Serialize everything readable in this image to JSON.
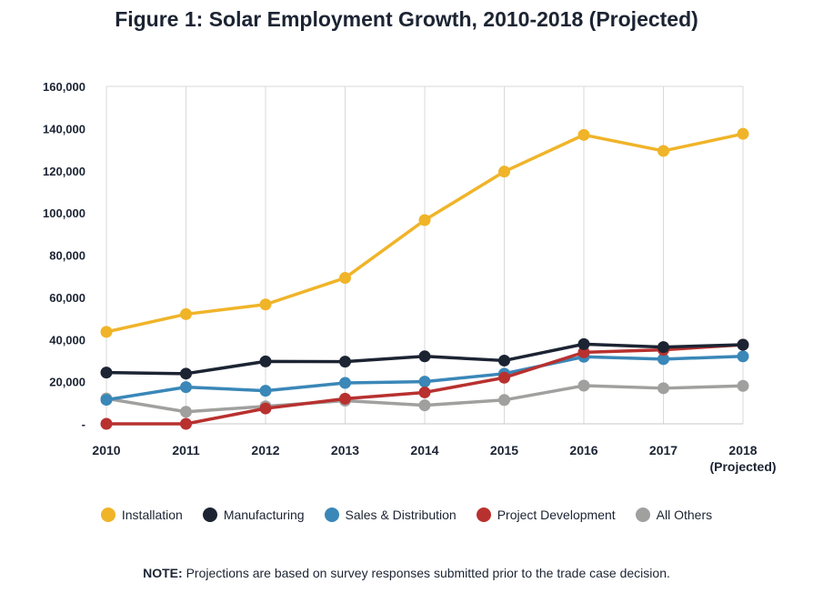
{
  "title": "Figure 1: Solar Employment Growth, 2010-2018 (Projected)",
  "note": {
    "label": "NOTE:",
    "text": " Projections are based on survey responses submitted prior to the trade case decision."
  },
  "chart_data": {
    "type": "line",
    "title": "Figure 1: Solar Employment Growth, 2010-2018 (Projected)",
    "xlabel": "",
    "ylabel": "",
    "categories": [
      "2010",
      "2011",
      "2012",
      "2013",
      "2014",
      "2015",
      "2016",
      "2017",
      "2018"
    ],
    "category_sublabels": [
      "",
      "",
      "",
      "",
      "",
      "",
      "",
      "",
      "(Projected)"
    ],
    "ylim": [
      0,
      160000
    ],
    "yticks": [
      0,
      20000,
      40000,
      60000,
      80000,
      100000,
      120000,
      140000,
      160000
    ],
    "ytick_labels": [
      "-",
      "20,000",
      "40,000",
      "60,000",
      "80,000",
      "100,000",
      "120,000",
      "140,000",
      "160,000"
    ],
    "grid": "vertical",
    "legend_position": "bottom",
    "series": [
      {
        "name": "Installation",
        "color": "#f0b429",
        "values": [
          43600,
          52000,
          56600,
          69200,
          96600,
          119600,
          137000,
          129400,
          137500
        ]
      },
      {
        "name": "Manufacturing",
        "color": "#1c2433",
        "values": [
          24300,
          23800,
          29600,
          29500,
          32000,
          30000,
          37800,
          36400,
          37500
        ]
      },
      {
        "name": "Sales & Distribution",
        "color": "#3a87b8",
        "values": [
          11400,
          17400,
          15700,
          19400,
          20000,
          23800,
          31800,
          30700,
          32000
        ]
      },
      {
        "name": "Project Development",
        "color": "#b8312f",
        "values": [
          0,
          0,
          7300,
          11900,
          14900,
          21900,
          33900,
          35100,
          37500
        ]
      },
      {
        "name": "All Others",
        "color": "#a0a09f",
        "values": [
          12000,
          5700,
          8300,
          11000,
          8800,
          11300,
          18100,
          16900,
          18000
        ]
      }
    ]
  }
}
